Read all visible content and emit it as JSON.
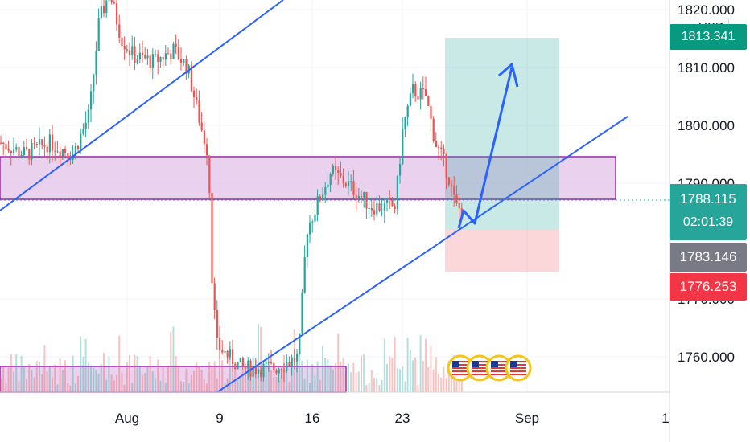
{
  "currency_label": "USD",
  "price_axis": {
    "ticks": [
      "1820.000",
      "1810.000",
      "1800.000",
      "1790.000",
      "1770.000",
      "1760.000"
    ],
    "tick_values": [
      1820,
      1810,
      1800,
      1790,
      1770,
      1760
    ]
  },
  "time_axis": {
    "labels": [
      "Aug",
      "9",
      "16",
      "23",
      "Sep",
      "1"
    ]
  },
  "badges": {
    "top_price": "1813.341",
    "current_price": "1788.115",
    "countdown": "02:01:39",
    "level_gray": "1783.146",
    "level_red": "1776.253"
  },
  "colors": {
    "up": "#26a69a",
    "down": "#ef5350",
    "trendline": "#2962ff",
    "zone_fill": "#e1bee7",
    "zone_border": "#9c27b0",
    "target_zone": "#b2dfdb",
    "stop_zone": "#ffcdd2",
    "badge_teal": "#26a69a",
    "badge_gray": "#787b86",
    "badge_red": "#f23645"
  },
  "events": {
    "icon": "us-flag-icon",
    "count": 4
  },
  "chart_data": {
    "type": "candlestick",
    "instrument_currency": "USD",
    "y_range": [
      1757,
      1821
    ],
    "key_levels": {
      "zone_high": 1795,
      "zone_low": 1788,
      "target": 1815,
      "entry": 1783.146,
      "stop": 1776.253,
      "last": 1788.115
    }
  }
}
